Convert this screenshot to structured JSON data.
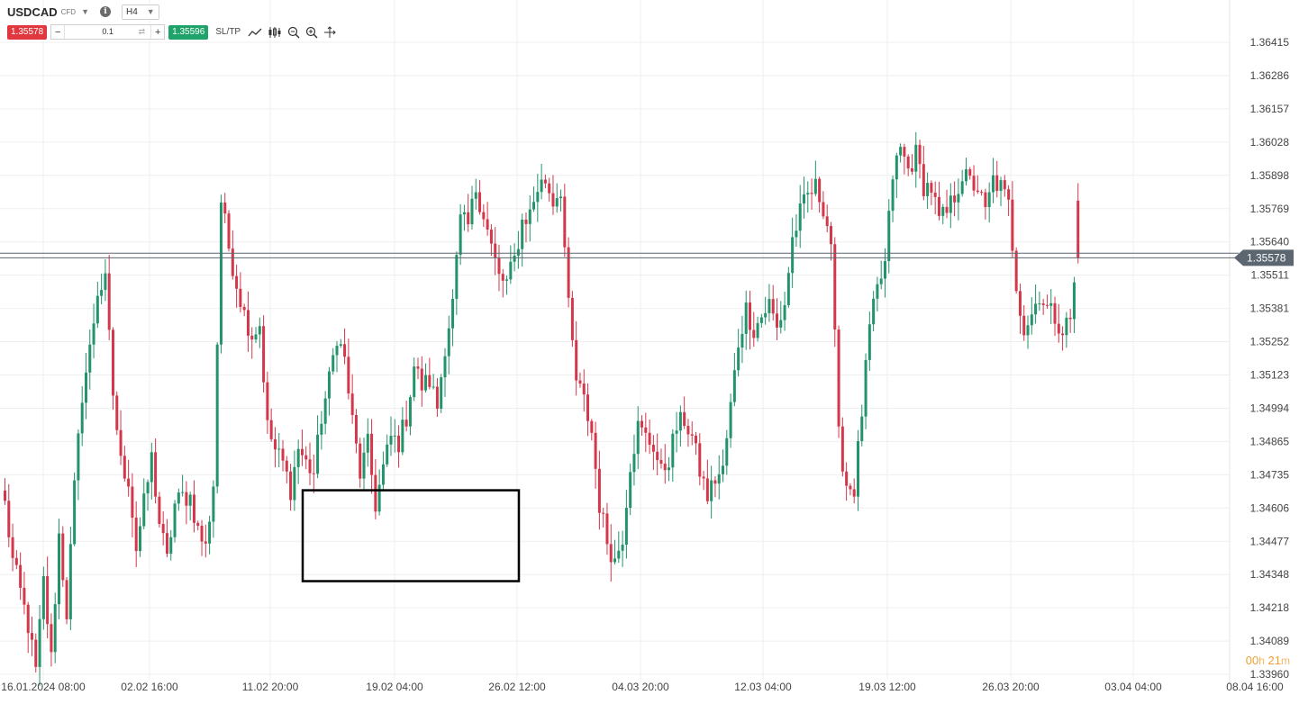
{
  "header": {
    "symbol": "USDCAD",
    "symbol_type": "CFD",
    "timeframe": "H4"
  },
  "trade_bar": {
    "sell_price": "1.35578",
    "quantity": "0.1",
    "buy_price": "1.35596",
    "sltp_label": "SL/TP",
    "minus": "−",
    "plus": "+"
  },
  "countdown": {
    "h_value": "00",
    "h_unit": "h",
    "m_value": "21",
    "m_unit": "m"
  },
  "colors": {
    "up": "#22936a",
    "down": "#d4374a",
    "grid": "#efefef",
    "price_tag": "#5b6670",
    "box": "#000000"
  },
  "chart_data": {
    "type": "candlestick",
    "title": "",
    "y_ticks": [
      "1.36415",
      "1.36286",
      "1.36157",
      "1.36028",
      "1.35898",
      "1.35769",
      "1.35640",
      "1.35511",
      "1.35381",
      "1.35252",
      "1.35123",
      "1.34994",
      "1.34865",
      "1.34735",
      "1.34606",
      "1.34477",
      "1.34348",
      "1.34218",
      "1.34089",
      "1.33960"
    ],
    "ylim": [
      1.3396,
      1.36415
    ],
    "x_ticks": [
      "16.01.2024 08:00",
      "02.02 16:00",
      "11.02 20:00",
      "19.02 04:00",
      "26.02 12:00",
      "04.03 20:00",
      "12.03 04:00",
      "19.03 12:00",
      "26.03 20:00",
      "03.04 04:00",
      "08.04 16:00"
    ],
    "current_price": "1.35578",
    "current_price_value": 1.35578,
    "second_line_value": 1.35596,
    "highlight_box": {
      "price_top": 1.34675,
      "price_bottom": 1.34322
    },
    "anchors": [
      1.3462,
      1.344,
      1.3428,
      1.3415,
      1.3397,
      1.3432,
      1.3402,
      1.345,
      1.342,
      1.3468,
      1.3505,
      1.3522,
      1.3545,
      1.3548,
      1.3505,
      1.3478,
      1.3472,
      1.3445,
      1.3462,
      1.348,
      1.3455,
      1.344,
      1.3462,
      1.3465,
      1.3465,
      1.3452,
      1.3445,
      1.347,
      1.358,
      1.3562,
      1.3548,
      1.3536,
      1.3528,
      1.3532,
      1.3492,
      1.3483,
      1.3478,
      1.3468,
      1.3484,
      1.3478,
      1.3474,
      1.3496,
      1.351,
      1.3528,
      1.3518,
      1.3494,
      1.3474,
      1.3485,
      1.3462,
      1.3476,
      1.3488,
      1.3486,
      1.3496,
      1.3516,
      1.3508,
      1.351,
      1.35,
      1.3524,
      1.354,
      1.3572,
      1.357,
      1.3585,
      1.3575,
      1.3562,
      1.355,
      1.3548,
      1.3557,
      1.3572,
      1.3575,
      1.3585,
      1.3588,
      1.358,
      1.3585,
      1.3538,
      1.351,
      1.3502,
      1.349,
      1.3462,
      1.3448,
      1.344,
      1.345,
      1.3478,
      1.3492,
      1.3488,
      1.3485,
      1.3474,
      1.348,
      1.3492,
      1.3495,
      1.3488,
      1.3475,
      1.3465,
      1.3472,
      1.3475,
      1.35,
      1.3525,
      1.3538,
      1.353,
      1.3535,
      1.354,
      1.353,
      1.354,
      1.3565,
      1.3575,
      1.3582,
      1.3585,
      1.3578,
      1.3564,
      1.3488,
      1.347,
      1.3468,
      1.3498,
      1.353,
      1.3545,
      1.3555,
      1.359,
      1.36,
      1.3592,
      1.3598,
      1.3586,
      1.3585,
      1.3572,
      1.3575,
      1.3582,
      1.359,
      1.3587,
      1.3585,
      1.3575,
      1.3588,
      1.3585,
      1.3578,
      1.3548,
      1.353,
      1.3536,
      1.3544,
      1.3538,
      1.3535,
      1.353,
      1.3534,
      1.356
    ],
    "last_candle": {
      "open": 1.358,
      "high": 1.3584,
      "low": 1.3554,
      "close": 1.35578
    }
  }
}
